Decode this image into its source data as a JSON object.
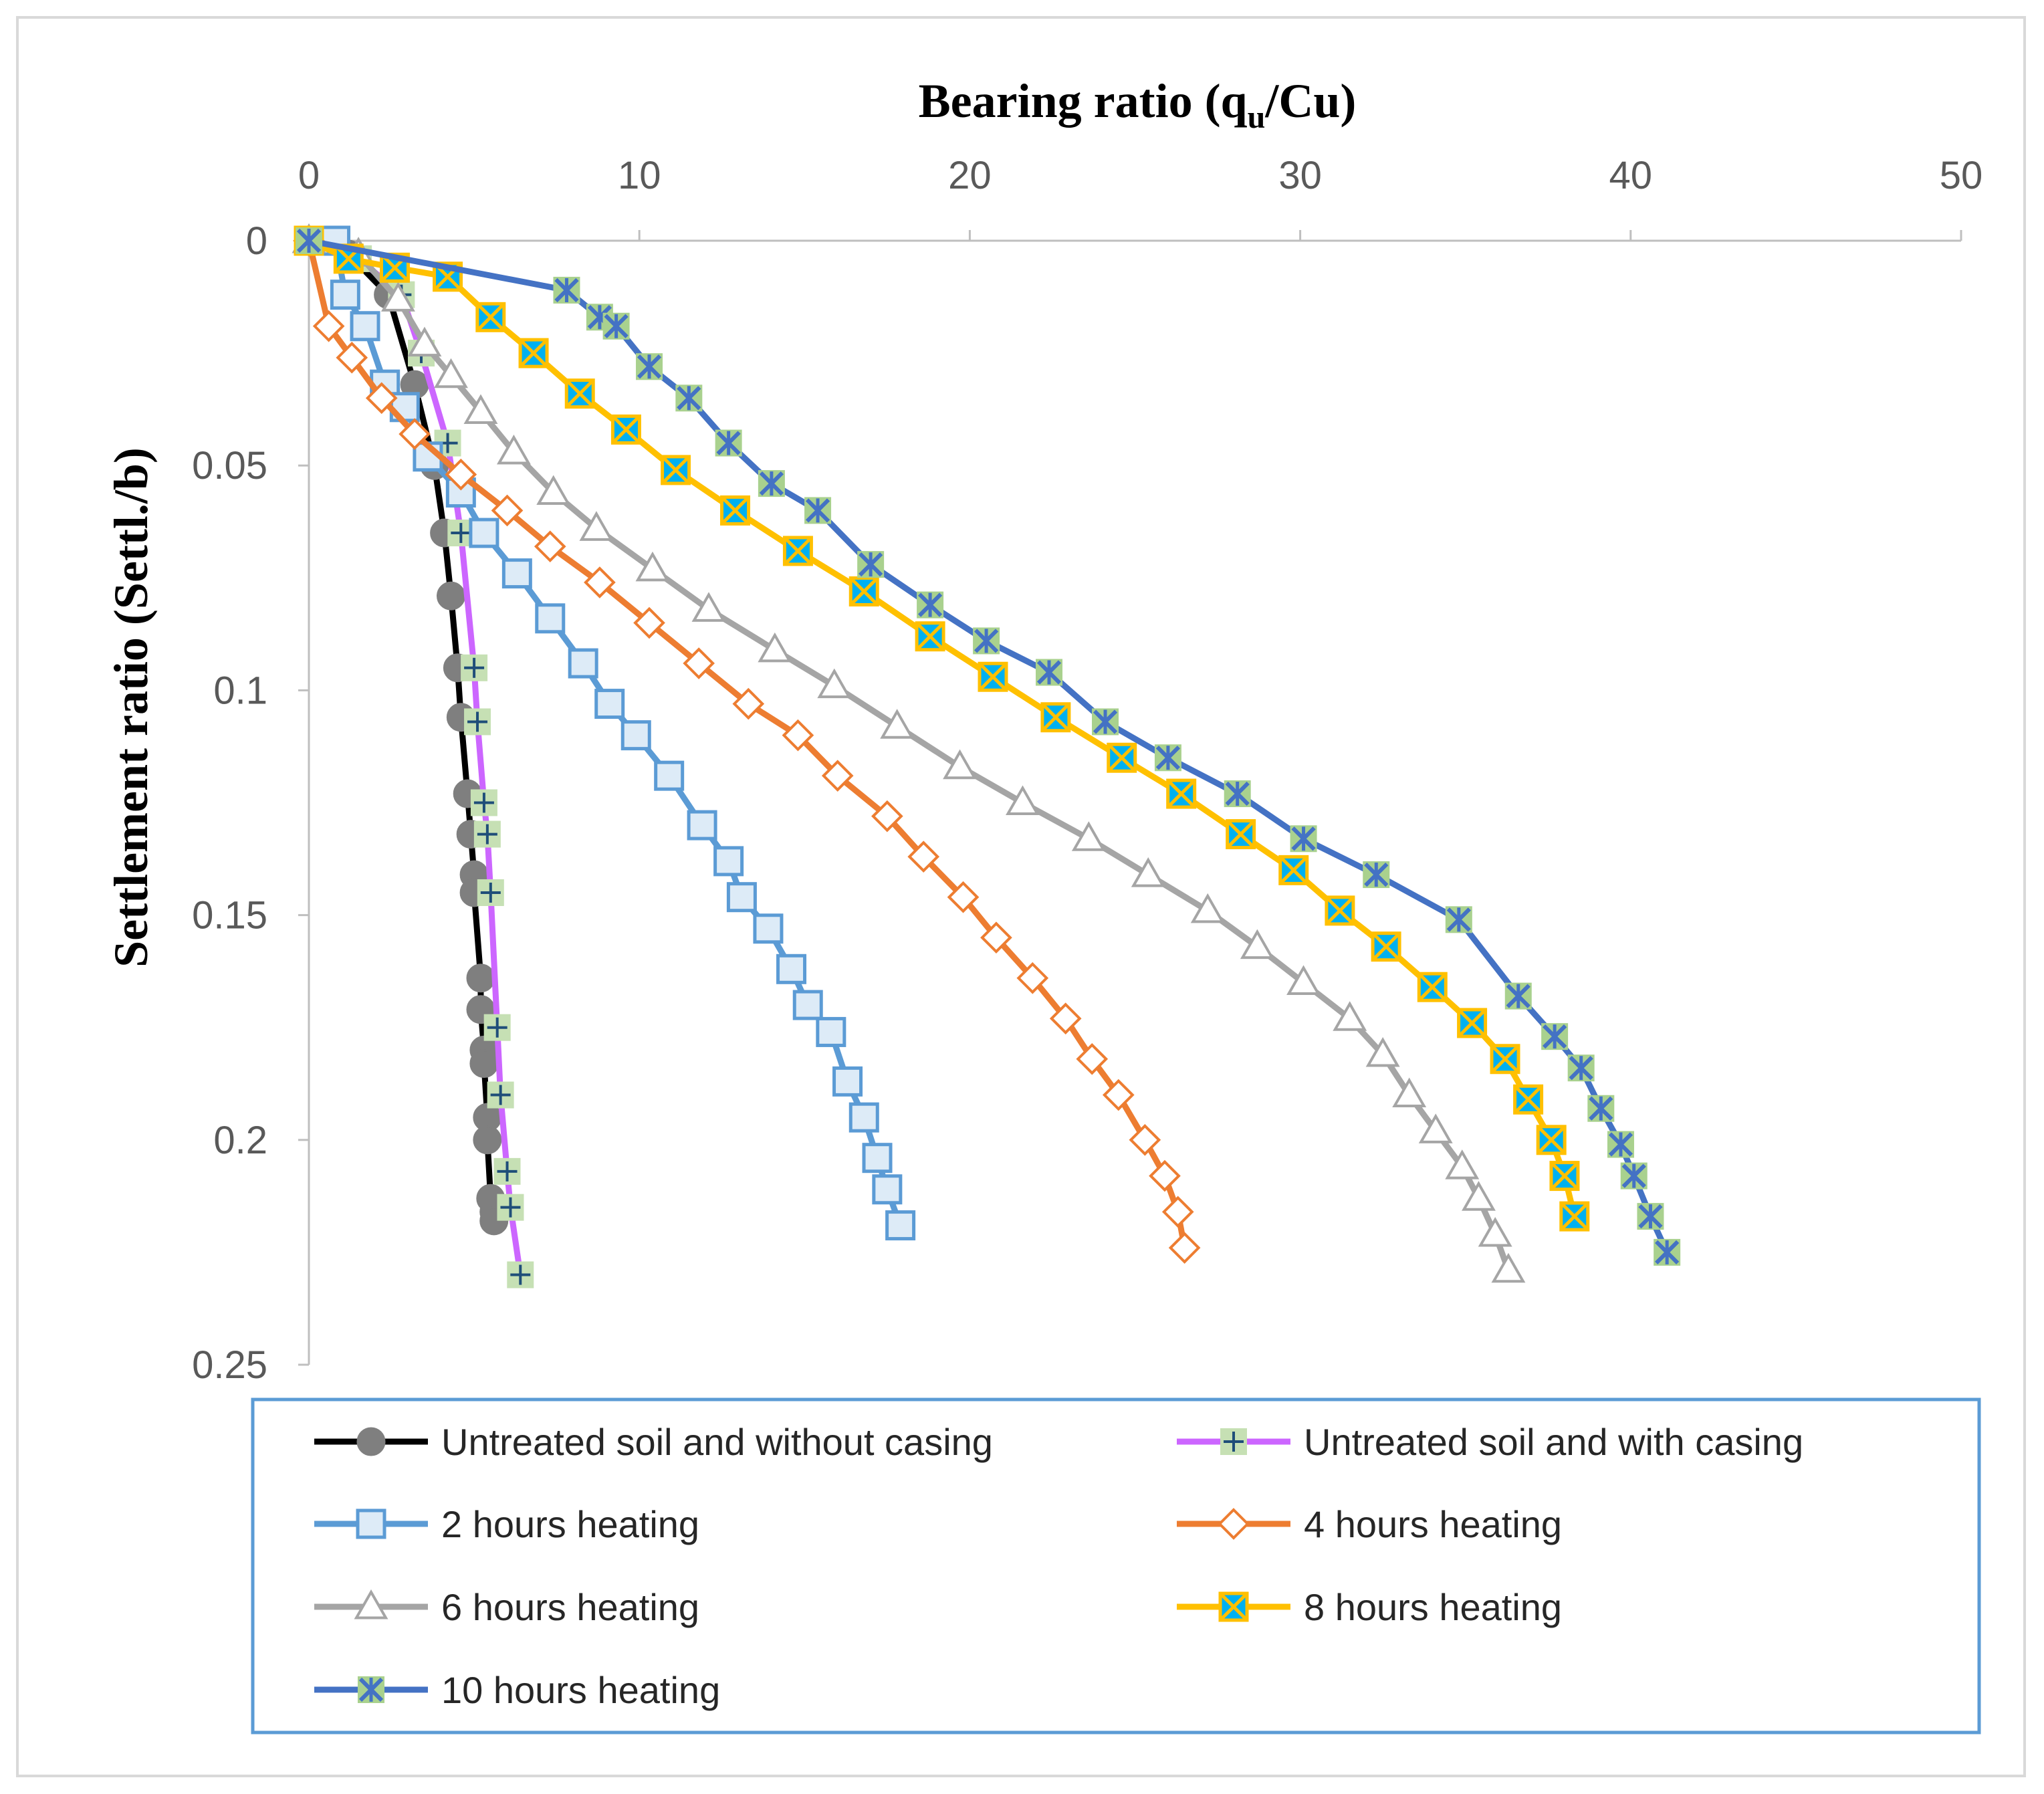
{
  "chart_data": {
    "type": "line",
    "title": "",
    "xlabel": {
      "main": "Bearing ratio (q",
      "sub": "u",
      "tail": "/Cu)"
    },
    "ylabel": "Settlement ratio (Settl./b)",
    "xlim": [
      0,
      50
    ],
    "ylim": [
      0,
      0.25
    ],
    "y_inverted": true,
    "x_axis_position": "top",
    "x_ticks": [
      "0",
      "10",
      "20",
      "30",
      "40",
      "50"
    ],
    "y_ticks": [
      "0",
      "0.05",
      "0.1",
      "0.15",
      "0.2",
      "0.25"
    ],
    "grid": false,
    "legend_position": "bottom",
    "series": [
      {
        "name": "Untreated soil and without casing",
        "color": "#000000",
        "marker": "circle",
        "marker_fill": "#7f7f7f",
        "marker_stroke": "#7f7f7f",
        "points": [
          [
            0,
            0
          ],
          [
            1.2,
            0.003
          ],
          [
            2.4,
            0.012
          ],
          [
            3.2,
            0.032
          ],
          [
            3.8,
            0.05
          ],
          [
            4.1,
            0.065
          ],
          [
            4.3,
            0.079
          ],
          [
            4.5,
            0.095
          ],
          [
            4.6,
            0.106
          ],
          [
            4.8,
            0.123
          ],
          [
            4.9,
            0.132
          ],
          [
            5.0,
            0.141
          ],
          [
            5.0,
            0.145
          ],
          [
            5.2,
            0.164
          ],
          [
            5.2,
            0.171
          ],
          [
            5.3,
            0.18
          ],
          [
            5.3,
            0.183
          ],
          [
            5.4,
            0.195
          ],
          [
            5.4,
            0.2
          ],
          [
            5.5,
            0.213
          ],
          [
            5.6,
            0.216
          ],
          [
            5.6,
            0.218
          ]
        ]
      },
      {
        "name": "Untreated soil and with casing",
        "color": "#cc66ff",
        "marker": "plus",
        "marker_fill": "#c6e0b4",
        "marker_stroke": "#1f4e79",
        "points": [
          [
            0,
            0
          ],
          [
            1.5,
            0.004
          ],
          [
            2.8,
            0.012
          ],
          [
            3.4,
            0.025
          ],
          [
            4.2,
            0.045
          ],
          [
            4.6,
            0.065
          ],
          [
            5.0,
            0.095
          ],
          [
            5.1,
            0.107
          ],
          [
            5.3,
            0.125
          ],
          [
            5.4,
            0.132
          ],
          [
            5.5,
            0.145
          ],
          [
            5.7,
            0.175
          ],
          [
            5.8,
            0.19
          ],
          [
            6.0,
            0.207
          ],
          [
            6.1,
            0.215
          ],
          [
            6.4,
            0.23
          ]
        ]
      },
      {
        "name": "2 hours heating",
        "color": "#5b9bd5",
        "marker": "square",
        "marker_fill": "#ddebf7",
        "marker_stroke": "#5b9bd5",
        "points": [
          [
            0,
            0
          ],
          [
            0.8,
            0
          ],
          [
            1.1,
            0.012
          ],
          [
            1.7,
            0.019
          ],
          [
            2.3,
            0.032
          ],
          [
            2.9,
            0.037
          ],
          [
            3.6,
            0.048
          ],
          [
            4.6,
            0.056
          ],
          [
            5.3,
            0.065
          ],
          [
            6.3,
            0.074
          ],
          [
            7.3,
            0.084
          ],
          [
            8.3,
            0.094
          ],
          [
            9.1,
            0.103
          ],
          [
            9.9,
            0.11
          ],
          [
            10.9,
            0.119
          ],
          [
            11.9,
            0.13
          ],
          [
            12.7,
            0.138
          ],
          [
            13.1,
            0.146
          ],
          [
            13.9,
            0.153
          ],
          [
            14.6,
            0.162
          ],
          [
            15.1,
            0.17
          ],
          [
            15.8,
            0.176
          ],
          [
            16.3,
            0.187
          ],
          [
            16.8,
            0.195
          ],
          [
            17.2,
            0.204
          ],
          [
            17.5,
            0.211
          ],
          [
            17.9,
            0.219
          ]
        ]
      },
      {
        "name": "4 hours heating",
        "color": "#ed7d31",
        "marker": "diamond",
        "marker_fill": "#ffffff",
        "marker_stroke": "#ed7d31",
        "points": [
          [
            0,
            0
          ],
          [
            0.6,
            0.019
          ],
          [
            1.3,
            0.026
          ],
          [
            2.2,
            0.035
          ],
          [
            3.2,
            0.043
          ],
          [
            4.6,
            0.052
          ],
          [
            6.0,
            0.06
          ],
          [
            7.3,
            0.068
          ],
          [
            8.8,
            0.076
          ],
          [
            10.3,
            0.085
          ],
          [
            11.8,
            0.094
          ],
          [
            13.3,
            0.103
          ],
          [
            14.8,
            0.11
          ],
          [
            16.0,
            0.119
          ],
          [
            17.5,
            0.128
          ],
          [
            18.6,
            0.137
          ],
          [
            19.8,
            0.146
          ],
          [
            20.8,
            0.155
          ],
          [
            21.9,
            0.164
          ],
          [
            22.9,
            0.173
          ],
          [
            23.7,
            0.182
          ],
          [
            24.5,
            0.19
          ],
          [
            25.3,
            0.2
          ],
          [
            25.9,
            0.208
          ],
          [
            26.3,
            0.216
          ],
          [
            26.5,
            0.224
          ]
        ]
      },
      {
        "name": "6 hours heating",
        "color": "#a5a5a5",
        "marker": "triangle",
        "marker_fill": "#ffffff",
        "marker_stroke": "#a5a5a5",
        "points": [
          [
            0,
            0
          ],
          [
            1.5,
            0.003
          ],
          [
            2.7,
            0.013
          ],
          [
            3.5,
            0.023
          ],
          [
            4.3,
            0.03
          ],
          [
            5.2,
            0.038
          ],
          [
            6.2,
            0.047
          ],
          [
            7.4,
            0.056
          ],
          [
            8.7,
            0.064
          ],
          [
            10.4,
            0.073
          ],
          [
            12.1,
            0.082
          ],
          [
            14.1,
            0.091
          ],
          [
            15.9,
            0.099
          ],
          [
            17.8,
            0.108
          ],
          [
            19.7,
            0.117
          ],
          [
            21.6,
            0.125
          ],
          [
            23.6,
            0.133
          ],
          [
            25.4,
            0.141
          ],
          [
            27.2,
            0.149
          ],
          [
            28.7,
            0.157
          ],
          [
            30.1,
            0.165
          ],
          [
            31.5,
            0.173
          ],
          [
            32.5,
            0.181
          ],
          [
            33.3,
            0.19
          ],
          [
            34.1,
            0.198
          ],
          [
            34.9,
            0.206
          ],
          [
            35.4,
            0.213
          ],
          [
            35.9,
            0.221
          ],
          [
            36.3,
            0.229
          ]
        ]
      },
      {
        "name": "8 hours heating",
        "color": "#ffc000",
        "marker": "hourglass",
        "marker_fill": "#00b0f0",
        "marker_stroke": "#ffc000",
        "points": [
          [
            0,
            0
          ],
          [
            1.2,
            0.004
          ],
          [
            2.6,
            0.006
          ],
          [
            4.2,
            0.008
          ],
          [
            5.5,
            0.017
          ],
          [
            6.8,
            0.025
          ],
          [
            8.2,
            0.034
          ],
          [
            9.6,
            0.042
          ],
          [
            11.1,
            0.051
          ],
          [
            12.9,
            0.06
          ],
          [
            14.8,
            0.069
          ],
          [
            16.8,
            0.078
          ],
          [
            18.8,
            0.088
          ],
          [
            20.7,
            0.097
          ],
          [
            22.6,
            0.106
          ],
          [
            24.6,
            0.115
          ],
          [
            26.4,
            0.123
          ],
          [
            28.2,
            0.132
          ],
          [
            29.8,
            0.14
          ],
          [
            31.2,
            0.149
          ],
          [
            32.6,
            0.157
          ],
          [
            34.0,
            0.166
          ],
          [
            35.2,
            0.174
          ],
          [
            36.2,
            0.182
          ],
          [
            36.9,
            0.191
          ],
          [
            37.6,
            0.2
          ],
          [
            38.0,
            0.208
          ],
          [
            38.3,
            0.217
          ]
        ]
      },
      {
        "name": "10 hours heating",
        "color": "#4472c4",
        "marker": "asterisk",
        "marker_fill": "#a9d18e",
        "marker_stroke": "#4472c4",
        "points": [
          [
            0,
            0
          ],
          [
            7.8,
            0.011
          ],
          [
            8.8,
            0.017
          ],
          [
            9.3,
            0.019
          ],
          [
            10.3,
            0.028
          ],
          [
            11.5,
            0.035
          ],
          [
            12.7,
            0.045
          ],
          [
            14.0,
            0.054
          ],
          [
            15.4,
            0.06
          ],
          [
            17.0,
            0.072
          ],
          [
            18.8,
            0.081
          ],
          [
            20.5,
            0.089
          ],
          [
            22.4,
            0.096
          ],
          [
            24.1,
            0.107
          ],
          [
            26.0,
            0.115
          ],
          [
            28.1,
            0.123
          ],
          [
            30.1,
            0.133
          ],
          [
            32.3,
            0.141
          ],
          [
            34.8,
            0.151
          ],
          [
            36.6,
            0.168
          ],
          [
            37.7,
            0.177
          ],
          [
            38.5,
            0.184
          ],
          [
            39.1,
            0.193
          ],
          [
            39.7,
            0.201
          ],
          [
            40.1,
            0.208
          ],
          [
            40.6,
            0.217
          ],
          [
            41.1,
            0.225
          ]
        ]
      }
    ]
  }
}
